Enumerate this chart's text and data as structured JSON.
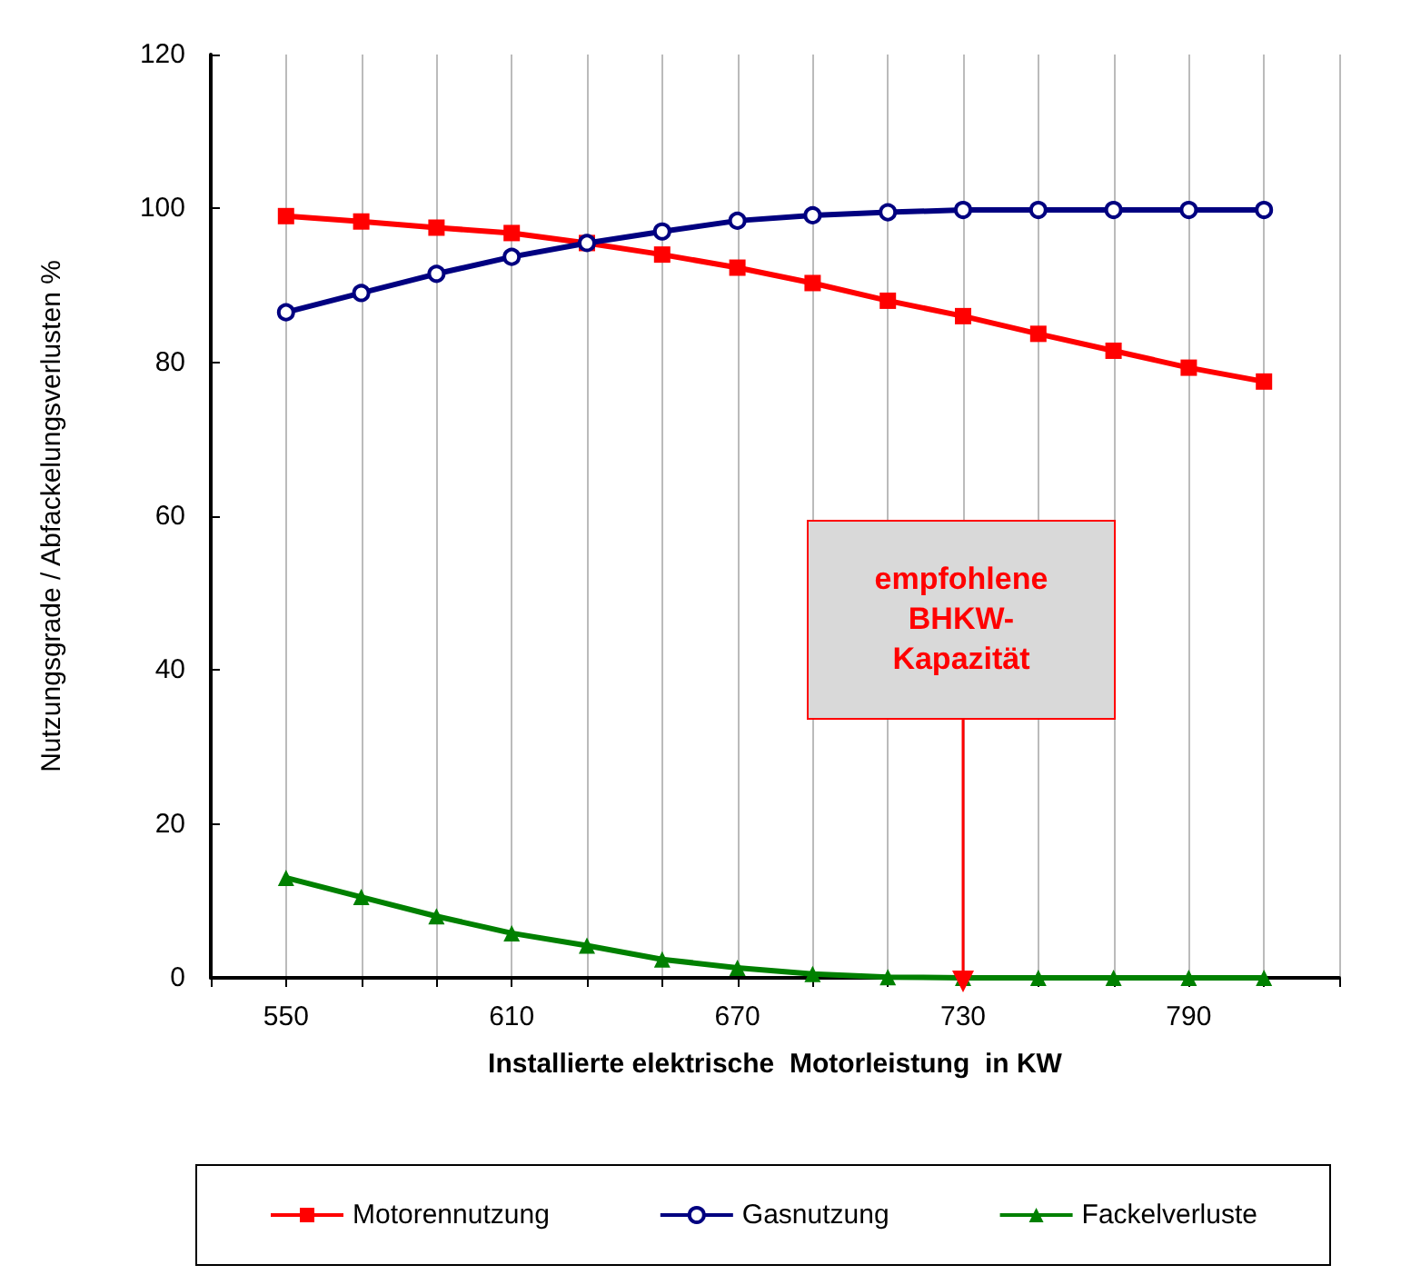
{
  "chart_data": {
    "type": "line",
    "xlabel": "Installierte elektrische  Motorleistung  in KW",
    "ylabel": "Nutzungsgrade / Abfackelungsverlusten %",
    "x": [
      550,
      570,
      590,
      610,
      630,
      650,
      670,
      690,
      710,
      730,
      750,
      770,
      790,
      810
    ],
    "series": [
      {
        "name": "Motorennutzung",
        "color": "#ff0000",
        "marker": "square",
        "values": [
          99,
          98.3,
          97.5,
          96.8,
          95.5,
          94,
          92.3,
          90.3,
          88,
          86,
          83.7,
          81.5,
          79.3,
          77.5
        ]
      },
      {
        "name": "Gasnutzung",
        "color": "#000080",
        "marker": "circle",
        "values": [
          86.5,
          89,
          91.5,
          93.7,
          95.5,
          97,
          98.4,
          99.1,
          99.5,
          99.8,
          99.8,
          99.8,
          99.8,
          99.8
        ]
      },
      {
        "name": "Fackelverluste",
        "color": "#008000",
        "marker": "triangle",
        "values": [
          13,
          10.5,
          8,
          5.8,
          4.2,
          2.4,
          1.3,
          0.5,
          0.1,
          0,
          0,
          0,
          0,
          0
        ]
      }
    ],
    "xlim": [
      530,
      830
    ],
    "xticks": [
      {
        "value": 530,
        "label": null
      },
      550,
      {
        "value": 570,
        "label": null
      },
      {
        "value": 590,
        "label": null
      },
      610,
      {
        "value": 630,
        "label": null
      },
      {
        "value": 650,
        "label": null
      },
      670,
      {
        "value": 690,
        "label": null
      },
      {
        "value": 710,
        "label": null
      },
      730,
      {
        "value": 750,
        "label": null
      },
      {
        "value": 770,
        "label": null
      },
      790,
      {
        "value": 810,
        "label": null
      },
      {
        "value": 830,
        "label": null
      }
    ],
    "ylim": [
      0,
      120
    ],
    "yticks": [
      0,
      20,
      40,
      60,
      80,
      100,
      120
    ],
    "grid": "x",
    "legend": "bottom",
    "line_style": "solid",
    "annotations": [
      "empfohlene\nBHKW-\nKapazität"
    ]
  }
}
